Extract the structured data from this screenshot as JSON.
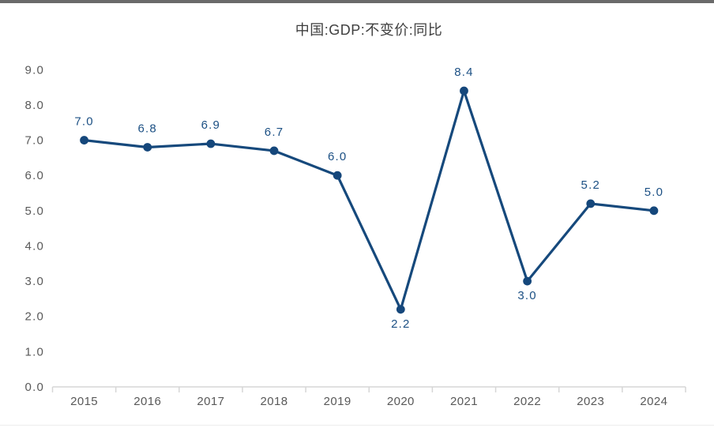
{
  "page": {
    "background": "#ffffff",
    "top_bar_color": "#6a6a6a",
    "bottom_line_color": "#ededed"
  },
  "chart_data": {
    "type": "line",
    "title": "中国:GDP:不变价:同比",
    "categories": [
      "2015",
      "2016",
      "2017",
      "2018",
      "2019",
      "2020",
      "2021",
      "2022",
      "2023",
      "2024"
    ],
    "series": [
      {
        "name": "中国:GDP:不变价:同比",
        "values": [
          7.0,
          6.8,
          6.9,
          6.7,
          6.0,
          2.2,
          8.4,
          3.0,
          5.2,
          5.0
        ],
        "point_labels": [
          "7.0",
          "6.8",
          "6.9",
          "6.7",
          "6.0",
          "2.2",
          "8.4",
          "3.0",
          "5.2",
          "5.0"
        ],
        "label_positions": [
          "above",
          "above",
          "above",
          "above",
          "above",
          "below",
          "above",
          "below",
          "above",
          "above"
        ],
        "color": "#16497C"
      }
    ],
    "xlabel": "",
    "ylabel": "",
    "ylim": [
      0,
      9
    ],
    "y_tick_step": 1.0,
    "y_tick_labels": [
      "0.0",
      "1.0",
      "2.0",
      "3.0",
      "4.0",
      "5.0",
      "6.0",
      "7.0",
      "8.0",
      "9.0"
    ],
    "grid": false,
    "legend_position": "none",
    "marker": "circle",
    "colors": {
      "line": "#16497C",
      "marker": "#15477B",
      "data_label": "#1C5084",
      "tick_label": "#595959",
      "title": "#3F3F3F",
      "axis_line": "#D6D6D6"
    }
  }
}
